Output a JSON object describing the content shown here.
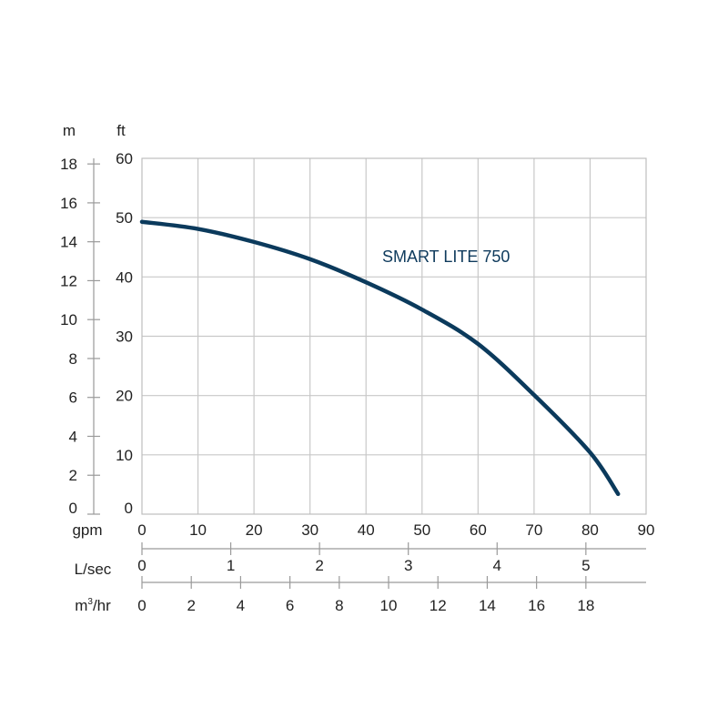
{
  "chart_data": {
    "type": "line",
    "title": "",
    "series": [
      {
        "name": "SMART LITE 750",
        "color": "#0b3a5c",
        "x": [
          0,
          10,
          20,
          30,
          40,
          50,
          60,
          70,
          80,
          85
        ],
        "values": [
          49.3,
          48.1,
          45.9,
          43.0,
          39.1,
          34.5,
          28.7,
          20.1,
          10.4,
          3.4
        ]
      }
    ],
    "xlabel": "gpm",
    "ylabel": "ft",
    "xlim": [
      0,
      90
    ],
    "ylim": [
      0,
      60
    ],
    "grid": true,
    "x_ticks": [
      0,
      10,
      20,
      30,
      40,
      50,
      60,
      70,
      80,
      90
    ],
    "y_ticks_ft": [
      0,
      10,
      20,
      30,
      40,
      50,
      60
    ],
    "secondary_axes": {
      "m": {
        "label": "m",
        "ticks": [
          0,
          2,
          4,
          6,
          8,
          10,
          12,
          14,
          16,
          18
        ]
      },
      "l_sec": {
        "label": "L/sec",
        "ticks": [
          0,
          1,
          2,
          3,
          4,
          5
        ]
      },
      "m3_hr": {
        "label": "m³/hr",
        "ticks": [
          0,
          2,
          4,
          6,
          8,
          10,
          12,
          14,
          16,
          18
        ]
      }
    },
    "annotations": [
      "SMART LITE 750"
    ]
  },
  "labels": {
    "m_axis": "m",
    "ft_axis": "ft",
    "gpm_axis": "gpm",
    "lsec_axis": "L/sec",
    "m3hr_axis_base": "m",
    "m3hr_axis_sup": "3",
    "m3hr_axis_rest": "/hr",
    "series_label": "SMART LITE 750"
  },
  "colors": {
    "curve": "#0b3a5c",
    "grid": "#c8c8c8",
    "axis": "#9a9a9a",
    "text": "#222222",
    "series_label": "#0e3a5c"
  }
}
